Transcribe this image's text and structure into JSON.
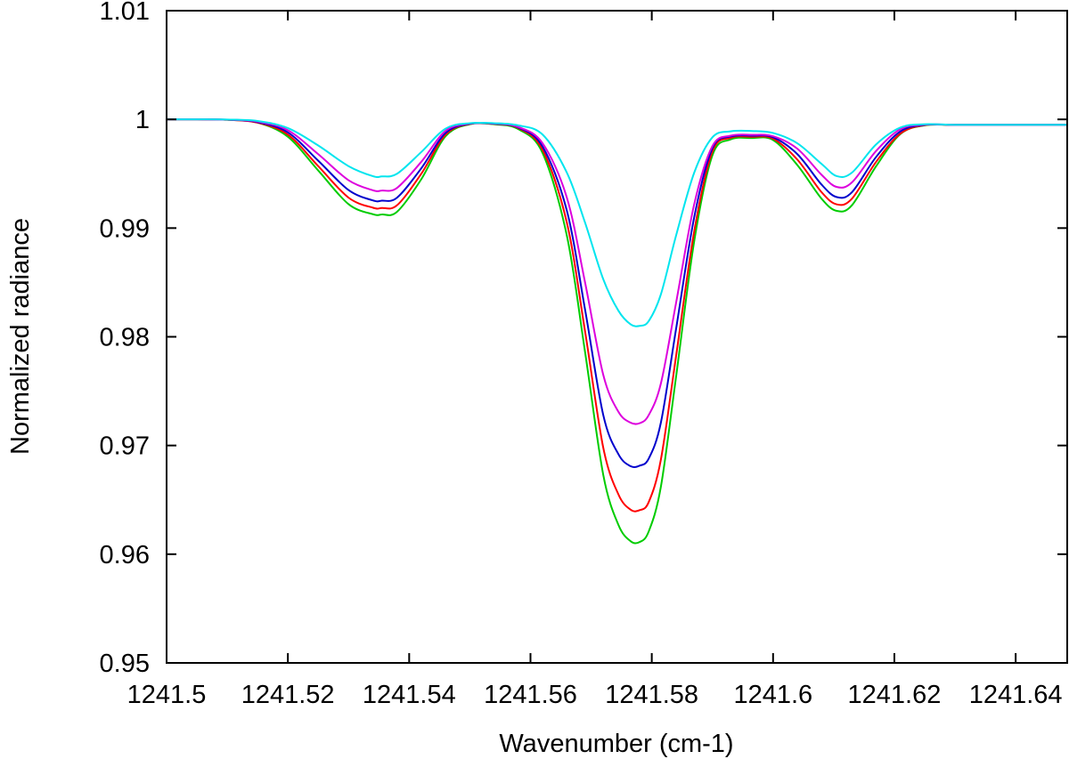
{
  "chart_data": {
    "type": "line",
    "title": "",
    "xlabel": "Wavenumber (cm-1)",
    "ylabel": "Normalized radiance",
    "xlim": [
      1241.5,
      1241.6485
    ],
    "ylim": [
      0.95,
      1.01
    ],
    "x_ticks": [
      1241.5,
      1241.52,
      1241.54,
      1241.56,
      1241.58,
      1241.6,
      1241.62,
      1241.64
    ],
    "x_tick_labels": [
      "1241.5",
      "1241.52",
      "1241.54",
      "1241.56",
      "1241.58",
      "1241.6",
      "1241.62",
      "1241.64"
    ],
    "y_ticks": [
      0.95,
      0.96,
      0.97,
      0.98,
      0.99,
      1.0,
      1.01
    ],
    "y_tick_labels": [
      "0.95",
      "0.96",
      "0.97",
      "0.98",
      "0.99",
      "1",
      "1.01"
    ],
    "grid": false,
    "legend": "none",
    "series": [
      {
        "color": "#00cc00",
        "x": [
          1241.5,
          1241.505,
          1241.51,
          1241.515,
          1241.52,
          1241.525,
          1241.53,
          1241.534,
          1241.5355,
          1241.538,
          1241.542,
          1241.546,
          1241.55,
          1241.554,
          1241.558,
          1241.562,
          1241.566,
          1241.569,
          1241.572,
          1241.5745,
          1241.5765,
          1241.578,
          1241.5795,
          1241.5815,
          1241.584,
          1241.587,
          1241.59,
          1241.593,
          1241.5965,
          1241.6,
          1241.604,
          1241.608,
          1241.6105,
          1241.613,
          1241.617,
          1241.621,
          1241.625,
          1241.63,
          1241.64,
          1241.6485
        ],
        "values": [
          1.0,
          1.0,
          0.99996,
          0.9997,
          0.9984,
          0.9953,
          0.9922,
          0.99128,
          0.99125,
          0.9915,
          0.9945,
          0.99845,
          0.99955,
          0.99955,
          0.9991,
          0.9969,
          0.9893,
          0.9786,
          0.9673,
          0.9627,
          0.9612,
          0.96112,
          0.9621,
          0.9662,
          0.9763,
          0.9888,
          0.9967,
          0.99815,
          0.99828,
          0.9981,
          0.9958,
          0.9927,
          0.99158,
          0.9921,
          0.9957,
          0.99865,
          0.99945,
          0.9995,
          0.9995,
          0.9995
        ]
      },
      {
        "color": "#ff0000",
        "x": [
          1241.5,
          1241.505,
          1241.51,
          1241.515,
          1241.52,
          1241.525,
          1241.53,
          1241.534,
          1241.5355,
          1241.538,
          1241.542,
          1241.546,
          1241.55,
          1241.554,
          1241.558,
          1241.562,
          1241.566,
          1241.569,
          1241.572,
          1241.5745,
          1241.5765,
          1241.578,
          1241.5795,
          1241.5815,
          1241.584,
          1241.587,
          1241.59,
          1241.593,
          1241.5965,
          1241.6,
          1241.604,
          1241.608,
          1241.6105,
          1241.613,
          1241.617,
          1241.621,
          1241.625,
          1241.63,
          1241.64,
          1241.6485
        ],
        "values": [
          1.0,
          1.0,
          0.99996,
          0.9997,
          0.9986,
          0.9957,
          0.9928,
          0.99188,
          0.99185,
          0.9921,
          0.995,
          0.9986,
          0.99958,
          0.99958,
          0.9992,
          0.9972,
          0.9905,
          0.9805,
          0.9698,
          0.9655,
          0.9641,
          0.96405,
          0.9648,
          0.9687,
          0.9782,
          0.9897,
          0.99705,
          0.9983,
          0.9984,
          0.99822,
          0.9963,
          0.9933,
          0.99218,
          0.9927,
          0.9961,
          0.9987,
          0.99947,
          0.9995,
          0.9995,
          0.9995
        ]
      },
      {
        "color": "#0000cc",
        "x": [
          1241.5,
          1241.505,
          1241.51,
          1241.515,
          1241.52,
          1241.525,
          1241.53,
          1241.534,
          1241.5355,
          1241.538,
          1241.542,
          1241.546,
          1241.55,
          1241.554,
          1241.558,
          1241.562,
          1241.566,
          1241.569,
          1241.572,
          1241.5745,
          1241.5765,
          1241.578,
          1241.5795,
          1241.5815,
          1241.584,
          1241.587,
          1241.59,
          1241.593,
          1241.5965,
          1241.6,
          1241.604,
          1241.608,
          1241.6105,
          1241.613,
          1241.617,
          1241.621,
          1241.625,
          1241.63,
          1241.64,
          1241.6485
        ],
        "values": [
          1.0,
          1.0,
          0.99997,
          0.99975,
          0.9988,
          0.9962,
          0.9935,
          0.99255,
          0.99252,
          0.9928,
          0.9955,
          0.99875,
          0.9996,
          0.9996,
          0.99925,
          0.9975,
          0.9916,
          0.9825,
          0.9728,
          0.9692,
          0.9681,
          0.96815,
          0.9688,
          0.9721,
          0.9807,
          0.991,
          0.99735,
          0.99842,
          0.9985,
          0.99835,
          0.9968,
          0.994,
          0.99285,
          0.9933,
          0.99655,
          0.9989,
          0.9995,
          0.9995,
          0.9995,
          0.9995
        ]
      },
      {
        "color": "#dd00dd",
        "x": [
          1241.5,
          1241.505,
          1241.51,
          1241.515,
          1241.52,
          1241.525,
          1241.53,
          1241.534,
          1241.5355,
          1241.538,
          1241.542,
          1241.546,
          1241.55,
          1241.554,
          1241.558,
          1241.562,
          1241.566,
          1241.569,
          1241.572,
          1241.5745,
          1241.5765,
          1241.578,
          1241.5795,
          1241.5815,
          1241.584,
          1241.587,
          1241.59,
          1241.593,
          1241.5965,
          1241.6,
          1241.604,
          1241.608,
          1241.6105,
          1241.613,
          1241.617,
          1241.621,
          1241.625,
          1241.63,
          1241.64,
          1241.6485
        ],
        "values": [
          1.0,
          1.0,
          0.99997,
          0.9998,
          0.999,
          0.9968,
          0.9944,
          0.99348,
          0.99345,
          0.9937,
          0.9961,
          0.99895,
          0.99962,
          0.99962,
          0.9993,
          0.9978,
          0.9928,
          0.985,
          0.9765,
          0.9731,
          0.9721,
          0.97205,
          0.9728,
          0.9757,
          0.9831,
          0.9922,
          0.99755,
          0.9985,
          0.99858,
          0.99845,
          0.9973,
          0.9949,
          0.99378,
          0.9942,
          0.9971,
          0.9991,
          0.99952,
          0.9995,
          0.9995,
          0.9995
        ]
      },
      {
        "color": "#00e5ee",
        "x": [
          1241.5,
          1241.505,
          1241.51,
          1241.515,
          1241.52,
          1241.525,
          1241.53,
          1241.534,
          1241.5355,
          1241.538,
          1241.542,
          1241.546,
          1241.55,
          1241.554,
          1241.558,
          1241.562,
          1241.566,
          1241.569,
          1241.572,
          1241.5745,
          1241.5765,
          1241.578,
          1241.5795,
          1241.5815,
          1241.584,
          1241.587,
          1241.59,
          1241.593,
          1241.5965,
          1241.6,
          1241.604,
          1241.608,
          1241.6105,
          1241.613,
          1241.617,
          1241.621,
          1241.625,
          1241.63,
          1241.64,
          1241.6485
        ],
        "values": [
          1.0,
          1.0,
          0.99998,
          0.99985,
          0.9992,
          0.9976,
          0.9957,
          0.99478,
          0.99475,
          0.995,
          0.997,
          0.99915,
          0.99965,
          0.99965,
          0.99945,
          0.9986,
          0.9951,
          0.9905,
          0.9853,
          0.9824,
          0.98115,
          0.981,
          0.98145,
          0.9839,
          0.9893,
          0.9951,
          0.99835,
          0.9989,
          0.99893,
          0.99875,
          0.9978,
          0.9959,
          0.99478,
          0.9951,
          0.9977,
          0.99925,
          0.99955,
          0.9995,
          0.9995,
          0.9995
        ]
      }
    ]
  }
}
